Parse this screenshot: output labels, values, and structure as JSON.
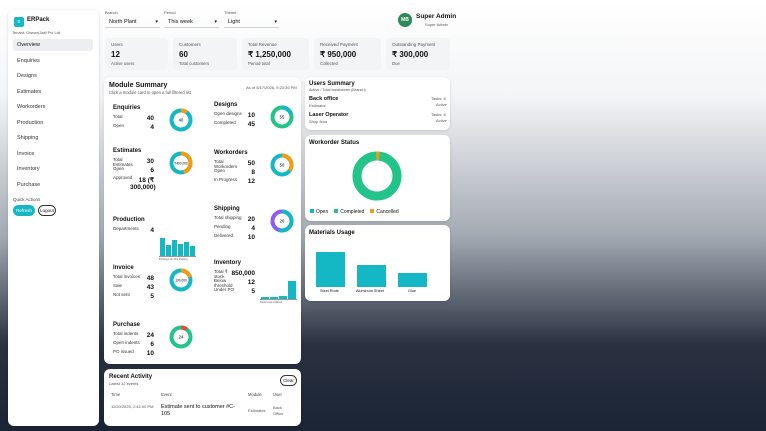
{
  "app": {
    "name": "ERPack",
    "tenant": "Tenant: Owner(Jaitl Pvt Ltd"
  },
  "sidebar": {
    "items": [
      {
        "label": "Overview"
      },
      {
        "label": "Enquiries"
      },
      {
        "label": "Designs"
      },
      {
        "label": "Estimates"
      },
      {
        "label": "Workorders"
      },
      {
        "label": "Production"
      },
      {
        "label": "Shipping"
      },
      {
        "label": "Invoice"
      },
      {
        "label": "Inventory"
      },
      {
        "label": "Purchase"
      }
    ],
    "quick_actions": "Quick Actions",
    "refresh": "Refresh",
    "logout": "Logout"
  },
  "filters": {
    "branch": {
      "label": "Branch",
      "value": "North Plant"
    },
    "period": {
      "label": "Period",
      "value": "This week"
    },
    "theme": {
      "label": "Theme",
      "value": "Light"
    }
  },
  "user": {
    "initials": "MB",
    "name": "Super Admin",
    "role": "Super Admin"
  },
  "stats": [
    {
      "label": "Users",
      "value": "12",
      "sub": "Active users"
    },
    {
      "label": "Customers",
      "value": "60",
      "sub": "Total customers"
    },
    {
      "label": "Total Revenue",
      "value": "₹ 1,250,000",
      "sub": "Period total"
    },
    {
      "label": "Received Payment",
      "value": "₹ 950,000",
      "sub": "Collected"
    },
    {
      "label": "Outstanding Payment",
      "value": "₹ 300,000",
      "sub": "Due"
    }
  ],
  "module_summary": {
    "title": "Module Summary",
    "subtitle": "Click a module card to open a full filtered list",
    "as_of": "As of 5/17/2026, 9:23:26 PM",
    "enquiries": {
      "title": "Enquiries",
      "rows": [
        {
          "k": "Total",
          "v": "40"
        },
        {
          "k": "Open",
          "v": "4"
        }
      ],
      "donut": "40"
    },
    "designs": {
      "title": "Designs",
      "rows": [
        {
          "k": "Open designs",
          "v": "10"
        },
        {
          "k": "Completed",
          "v": "45"
        }
      ],
      "donut": "55"
    },
    "estimates": {
      "title": "Estimates",
      "rows": [
        {
          "k": "Total Estimates",
          "v": "30"
        },
        {
          "k": "Open",
          "v": "6"
        },
        {
          "k": "Approved",
          "v": "18 (₹ 300,000)"
        }
      ],
      "donut": "₹400,000"
    },
    "workorders": {
      "title": "Workorders",
      "rows": [
        {
          "k": "Total Workorders",
          "v": "50"
        },
        {
          "k": "Open",
          "v": "8"
        },
        {
          "k": "In Progress",
          "v": "12"
        }
      ],
      "donut": "50"
    },
    "production": {
      "title": "Production",
      "rows": [
        {
          "k": "Departments",
          "v": "4"
        }
      ],
      "bars": [
        0.9,
        0.55,
        0.8,
        0.6,
        0.7,
        0.5
      ],
      "bar_labels": "Printing Lam Die Pasting"
    },
    "shipping": {
      "title": "Shipping",
      "rows": [
        {
          "k": "Total shipping",
          "v": "20"
        },
        {
          "k": "Pending",
          "v": "4"
        },
        {
          "k": "Delivered",
          "v": "10"
        }
      ],
      "donut": "20"
    },
    "invoice": {
      "title": "Invoice",
      "rows": [
        {
          "k": "Total invoices",
          "v": "48"
        },
        {
          "k": "Sale",
          "v": "43"
        },
        {
          "k": "Not sent",
          "v": "5"
        }
      ],
      "donut": "100,000"
    },
    "inventory": {
      "title": "Inventory",
      "rows": [
        {
          "k": "Total ₹ stock",
          "v": "850,000"
        },
        {
          "k": "Below threshold",
          "v": "12"
        },
        {
          "k": "Under PO",
          "v": "5"
        }
      ],
      "bars": [
        0.1,
        0.1,
        0.15,
        0.9
      ],
      "bar_labels": "Stock Low  Ordered"
    },
    "purchase": {
      "title": "Purchase",
      "rows": [
        {
          "k": "Total indents",
          "v": "24"
        },
        {
          "k": "Open indents",
          "v": "6"
        },
        {
          "k": "PO issued",
          "v": "10"
        }
      ],
      "donut": "24"
    }
  },
  "users_summary": {
    "title": "Users Summary",
    "subtitle": "Active / Total breakdown (Branch)",
    "rows": [
      {
        "name": "Back office",
        "sub": "Estimator",
        "tasks": "Tasks: 8",
        "status": "Active"
      },
      {
        "name": "Laser Operator",
        "sub": "Shop floor",
        "tasks": "Tasks: 8",
        "status": "Active"
      }
    ]
  },
  "workorder_status": {
    "title": "Workorder Status",
    "legend": [
      "Open",
      "Completed",
      "Cancelled"
    ],
    "colors": [
      "#14b8c4",
      "#23c48a",
      "#f39c12"
    ]
  },
  "materials": {
    "title": "Materials Usage",
    "categories": [
      "Steel Rods",
      "Aluminum Sheet",
      "Glue"
    ],
    "values": [
      1.0,
      0.63,
      0.42
    ]
  },
  "recent_activity": {
    "title": "Recent Activity",
    "subtitle": "Latest 12 events",
    "clear": "Clear",
    "headers": [
      "Time",
      "Event",
      "Module",
      "User"
    ],
    "rows": [
      {
        "time": "11/20/2025, 2:42:00 PM",
        "event": "Estimate sent to customer #C-105",
        "module": "Estimates",
        "user": "Back Office"
      }
    ]
  },
  "colors": {
    "teal": "#14b8c4",
    "green": "#23c48a",
    "orange": "#f39c12",
    "purple": "#8b5cf6",
    "red": "#e74c3c"
  }
}
